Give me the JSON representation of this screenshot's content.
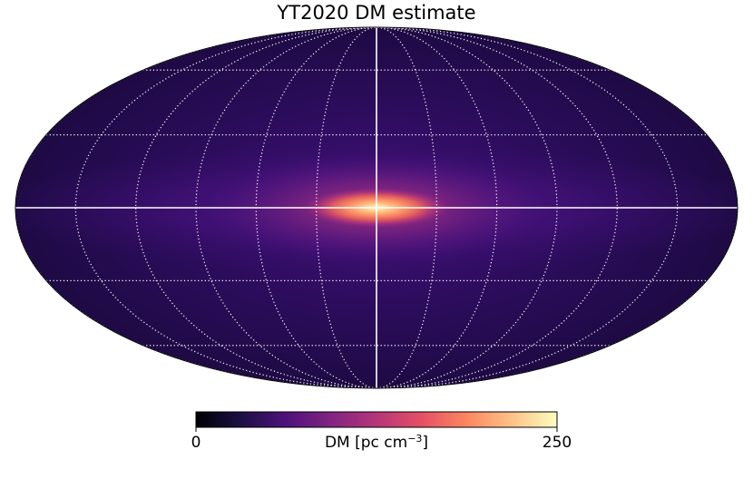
{
  "chart_data": {
    "type": "heatmap",
    "projection": "mollweide",
    "title": "YT2020 DM estimate",
    "colormap": "magma",
    "colorbar": {
      "min": 0,
      "max": 250,
      "min_label": "0",
      "max_label": "250",
      "label_text": "DM [pc cm",
      "label_exponent": "−3",
      "label_close": "]"
    },
    "graticule": {
      "latitude_lines_deg": [
        -60,
        -30,
        0,
        30,
        60
      ],
      "longitude_lines_deg": [
        -180,
        -150,
        -120,
        -90,
        -60,
        -30,
        0,
        30,
        60,
        90,
        120,
        150,
        180
      ],
      "style": "dotted",
      "equator_and_prime_meridian": "solid"
    },
    "field_description_values": {
      "peak_at": [
        0,
        0
      ],
      "peak_dm": 250,
      "background_dm": 20,
      "galactic_plane_dm": 60
    }
  }
}
